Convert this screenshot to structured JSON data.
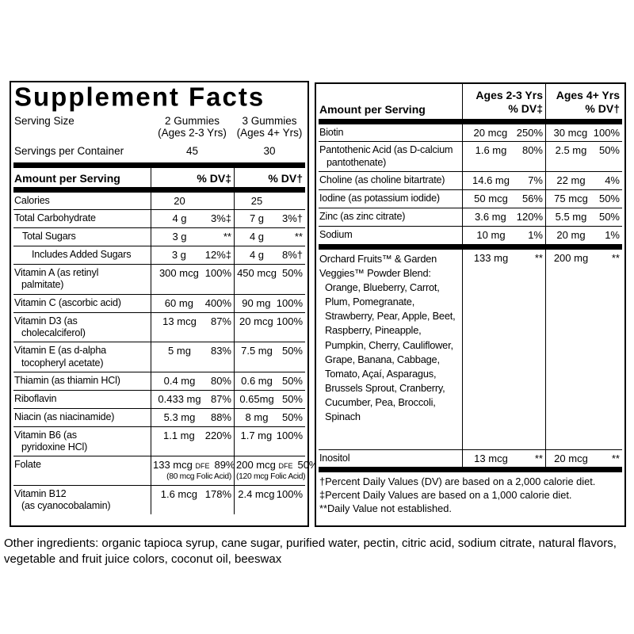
{
  "colors": {
    "text": "#000000",
    "background": "#ffffff",
    "rule": "#000000"
  },
  "title": "Supplement Facts",
  "serving": {
    "size_label": "Serving Size",
    "container_label": "Servings per Container",
    "col1_line1": "2 Gummies",
    "col1_line2": "(Ages 2-3 Yrs)",
    "col1_servings": "45",
    "col2_line1": "3 Gummies",
    "col2_line2": "(Ages 4+ Yrs)",
    "col2_servings": "30"
  },
  "left_table": {
    "header": {
      "name": "Amount per Serving",
      "dv1": "% DV‡",
      "dv2": "% DV†"
    },
    "rows": [
      {
        "name": "Calories",
        "amt1": "20",
        "pct1": "",
        "amt2": "25",
        "pct2": ""
      },
      {
        "name": "Total Carbohydrate",
        "amt1": "4 g",
        "pct1": "3%‡",
        "amt2": "7 g",
        "pct2": "3%†"
      },
      {
        "name": "Total Sugars",
        "amt1": "3 g",
        "pct1": "**",
        "amt2": "4 g",
        "pct2": "**"
      },
      {
        "name": "Includes Added Sugars",
        "amt1": "3 g",
        "pct1": "12%‡",
        "amt2": "4 g",
        "pct2": "8%†"
      },
      {
        "name": "Vitamin A (as retinyl",
        "name2": "palmitate)",
        "amt1": "300 mcg",
        "pct1": "100%",
        "amt2": "450 mcg",
        "pct2": "50%"
      },
      {
        "name": "Vitamin C (ascorbic acid)",
        "amt1": "60 mg",
        "pct1": "400%",
        "amt2": "90 mg",
        "pct2": "100%"
      },
      {
        "name": "Vitamin D3 (as",
        "name2": "cholecalciferol)",
        "amt1": "13 mcg",
        "pct1": "87%",
        "amt2": "20 mcg",
        "pct2": "100%"
      },
      {
        "name": "Vitamin E (as d-alpha",
        "name2": "tocopheryl acetate)",
        "amt1": "5 mg",
        "pct1": "83%",
        "amt2": "7.5 mg",
        "pct2": "50%"
      },
      {
        "name": "Thiamin (as thiamin HCl)",
        "amt1": "0.4 mg",
        "pct1": "80%",
        "amt2": "0.6 mg",
        "pct2": "50%"
      },
      {
        "name": "Riboflavin",
        "amt1": "0.433 mg",
        "pct1": "87%",
        "amt2": "0.65mg",
        "pct2": "50%"
      },
      {
        "name": "Niacin (as niacinamide)",
        "amt1": "5.3 mg",
        "pct1": "88%",
        "amt2": "8 mg",
        "pct2": "50%"
      },
      {
        "name": "Vitamin B6 (as",
        "name2": "pyridoxine HCl)",
        "amt1": "1.1 mg",
        "pct1": "220%",
        "amt2": "1.7 mg",
        "pct2": "100%"
      },
      {
        "name": "Folate",
        "amt1": "133 mcg",
        "dfe1": "DFE",
        "pct1": "89%",
        "sub1": "(80 mcg Folic Acid)",
        "amt2": "200 mcg",
        "dfe2": "DFE",
        "pct2": "50%",
        "sub2": "(120 mcg Folic Acid)"
      },
      {
        "name": "Vitamin B12",
        "name2": "(as cyanocobalamin)",
        "amt1": "1.6 mcg",
        "pct1": "178%",
        "amt2": "2.4 mcg",
        "pct2": "100%"
      }
    ]
  },
  "right_table": {
    "header": {
      "name": "Amount per Serving",
      "col1_line1": "Ages 2-3 Yrs",
      "col1_line2": "% DV‡",
      "col2_line1": "Ages 4+ Yrs",
      "col2_line2": "% DV†"
    },
    "rows": [
      {
        "name": "Biotin",
        "amt1": "20 mcg",
        "pct1": "250%",
        "amt2": "30 mcg",
        "pct2": "100%"
      },
      {
        "name": "Pantothenic Acid (as D-calcium",
        "name2": "pantothenate)",
        "amt1": "1.6 mg",
        "pct1": "80%",
        "amt2": "2.5 mg",
        "pct2": "50%"
      },
      {
        "name": "Choline (as choline bitartrate)",
        "amt1": "14.6 mg",
        "pct1": "7%",
        "amt2": "22 mg",
        "pct2": "4%"
      },
      {
        "name": "Iodine (as potassium iodide)",
        "amt1": "50 mcg",
        "pct1": "56%",
        "amt2": "75 mcg",
        "pct2": "50%"
      },
      {
        "name": "Zinc (as zinc citrate)",
        "amt1": "3.6 mg",
        "pct1": "120%",
        "amt2": "5.5 mg",
        "pct2": "50%"
      },
      {
        "name": "Sodium",
        "amt1": "10 mg",
        "pct1": "1%",
        "amt2": "20 mg",
        "pct2": "1%"
      }
    ],
    "blend": {
      "title": "Orchard Fruits™ & Garden Veggies™ Powder Blend:",
      "items": "Orange, Blueberry, Carrot, Plum, Pomegranate, Strawberry, Pear, Apple, Beet, Raspberry, Pineapple, Pumpkin, Cherry, Cauliflower, Grape, Banana, Cabbage, Tomato, Açaí, Asparagus, Brussels Sprout, Cranberry, Cucumber, Pea, Broccoli, Spinach",
      "amt1": "133 mg",
      "pct1": "**",
      "amt2": "200 mg",
      "pct2": "**"
    },
    "inositol": {
      "name": "Inositol",
      "amt1": "13 mcg",
      "pct1": "**",
      "amt2": "20 mcg",
      "pct2": "**"
    }
  },
  "footnotes": {
    "line1": "†Percent Daily Values (DV) are based on a 2,000 calorie diet.",
    "line2": "‡Percent Daily Values are based on a 1,000 calorie diet.",
    "line3": "**Daily Value not established."
  },
  "other_ingredients": "Other ingredients: organic tapioca syrup, cane sugar, purified water, pectin, citric acid, sodium citrate, natural flavors, vegetable and fruit juice colors, coconut oil, beeswax"
}
